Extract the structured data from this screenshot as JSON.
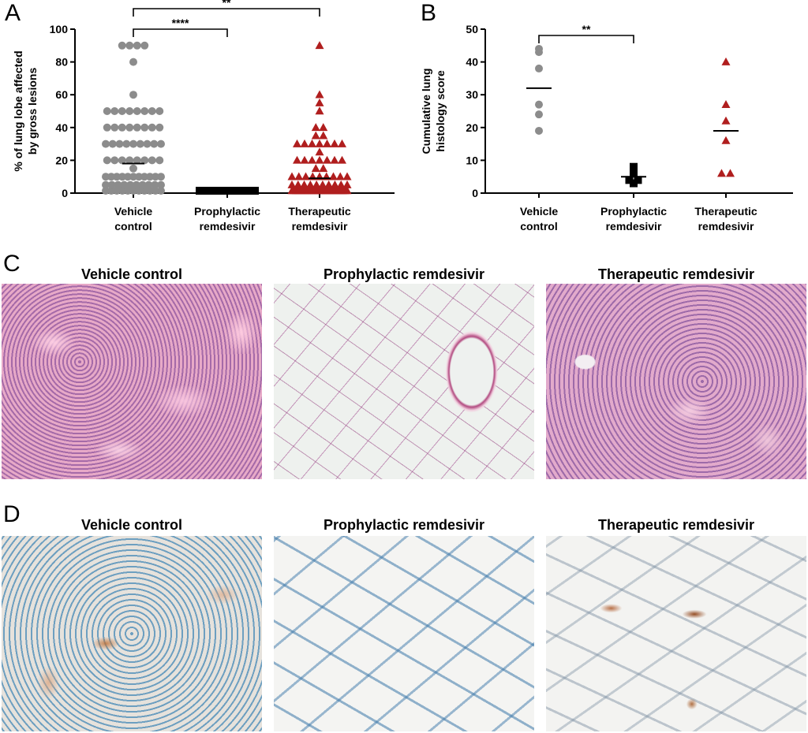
{
  "panels": {
    "a": "A",
    "b": "B",
    "c": "C",
    "d": "D"
  },
  "chart_data": [
    {
      "id": "A",
      "type": "scatter",
      "title": "",
      "ylabel_line1": "% of lung lobe affected",
      "ylabel_line2": "by gross lesions",
      "ylim": [
        0,
        100
      ],
      "yticks": [
        "0",
        "20",
        "40",
        "60",
        "80",
        "100"
      ],
      "categories": [
        {
          "line1": "Vehicle",
          "line2": "control"
        },
        {
          "line1": "Prophylactic",
          "line2": "remdesivir"
        },
        {
          "line1": "Therapeutic",
          "line2": "remdesivir"
        }
      ],
      "series": [
        {
          "color": "#8c8c8c",
          "marker": "circle",
          "values": [
            90,
            90,
            90,
            90,
            80,
            60,
            50,
            50,
            50,
            50,
            50,
            50,
            50,
            50,
            40,
            40,
            40,
            40,
            40,
            40,
            40,
            40,
            30,
            30,
            30,
            30,
            30,
            30,
            30,
            30,
            30,
            20,
            20,
            20,
            20,
            20,
            20,
            20,
            20,
            15,
            10,
            10,
            10,
            10,
            10,
            10,
            10,
            10,
            10,
            10,
            10,
            5,
            5,
            5,
            5,
            5,
            5,
            5,
            5,
            5,
            5,
            0,
            0,
            0,
            0,
            0,
            0,
            0,
            0,
            0,
            0,
            0
          ],
          "mean": 18
        },
        {
          "color": "#000000",
          "marker": "square",
          "values": [
            0,
            0,
            0,
            0,
            0,
            0,
            0,
            0,
            0,
            0,
            0,
            0,
            0,
            0,
            0,
            0,
            0,
            0,
            0,
            0,
            0,
            0,
            0,
            0,
            0,
            0,
            0,
            0,
            0,
            0,
            0,
            0,
            0,
            0,
            0,
            0,
            0,
            0,
            0,
            0,
            0,
            0,
            0,
            0,
            0,
            0,
            0,
            0,
            0,
            0,
            0,
            0,
            0,
            0,
            0,
            0,
            0,
            0,
            0,
            0,
            0,
            0,
            0,
            0,
            0,
            0,
            0,
            0,
            0,
            0,
            0,
            0
          ],
          "mean": 0
        },
        {
          "color": "#b01e1e",
          "marker": "triangle",
          "values": [
            90,
            60,
            55,
            50,
            40,
            40,
            35,
            35,
            30,
            30,
            30,
            30,
            30,
            30,
            30,
            25,
            20,
            20,
            20,
            20,
            20,
            20,
            20,
            15,
            15,
            10,
            10,
            10,
            10,
            10,
            10,
            10,
            10,
            10,
            5,
            5,
            5,
            5,
            5,
            5,
            5,
            5,
            5,
            5,
            0,
            0,
            0,
            0,
            0,
            0,
            0,
            0,
            0,
            0,
            0,
            0,
            0,
            0,
            0,
            0,
            0,
            0,
            0,
            0,
            0,
            0,
            0,
            0,
            0,
            0,
            0,
            0
          ],
          "mean": 9
        }
      ],
      "significance": [
        {
          "from": 0,
          "to": 1,
          "label": "****"
        },
        {
          "from": 0,
          "to": 2,
          "label": "**"
        }
      ]
    },
    {
      "id": "B",
      "type": "scatter",
      "title": "",
      "ylabel_line1": "Cumulative lung",
      "ylabel_line2": "histology score",
      "ylim": [
        0,
        50
      ],
      "yticks": [
        "0",
        "10",
        "20",
        "30",
        "40",
        "50"
      ],
      "categories": [
        {
          "line1": "Vehicle",
          "line2": "control"
        },
        {
          "line1": "Prophylactic",
          "line2": "remdesivir"
        },
        {
          "line1": "Therapeutic",
          "line2": "remdesivir"
        }
      ],
      "series": [
        {
          "color": "#8c8c8c",
          "marker": "circle",
          "values": [
            44,
            43,
            38,
            27,
            24,
            19
          ],
          "mean": 32
        },
        {
          "color": "#000000",
          "marker": "square",
          "values": [
            8,
            7,
            6,
            4,
            4,
            3
          ],
          "mean": 5
        },
        {
          "color": "#b01e1e",
          "marker": "triangle",
          "values": [
            40,
            27,
            22,
            16,
            6,
            6
          ],
          "mean": 19
        }
      ],
      "significance": [
        {
          "from": 0,
          "to": 1,
          "label": "**"
        }
      ]
    }
  ],
  "histology": {
    "he": [
      "Vehicle control",
      "Prophylactic remdesivir",
      "Therapeutic remdesivir"
    ],
    "ihc": [
      "Vehicle control",
      "Prophylactic remdesivir",
      "Therapeutic remdesivir"
    ]
  }
}
